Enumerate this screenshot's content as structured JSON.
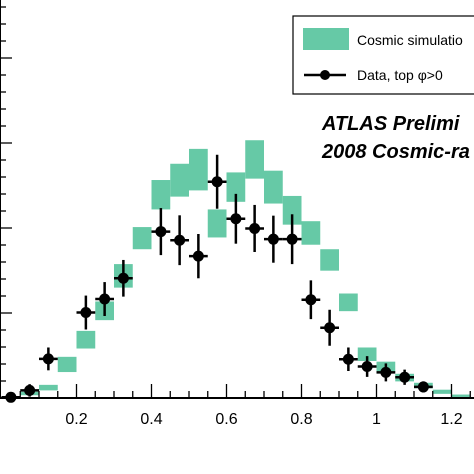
{
  "chart_data": {
    "type": "scatter",
    "title": "",
    "xlabel": "",
    "ylabel": "",
    "xlim": [
      0.0,
      1.25
    ],
    "ylim": [
      0,
      1
    ],
    "x_ticks": [
      "0.2",
      "0.4",
      "0.6",
      "0.8",
      "1",
      "1.2"
    ],
    "legend": {
      "placement": "top-right"
    },
    "annotations": [
      "ATLAS Prelimi",
      "2008 Cosmic-ra"
    ],
    "series": [
      {
        "name": "Cosmic simulatio",
        "kind": "band",
        "color": "#66c9a6",
        "values": [
          {
            "x": 0.025,
            "ylo": 0.0,
            "yhi": 0.004
          },
          {
            "x": 0.075,
            "ylo": 0.008,
            "yhi": 0.018
          },
          {
            "x": 0.125,
            "ylo": 0.022,
            "yhi": 0.038
          },
          {
            "x": 0.175,
            "ylo": 0.075,
            "yhi": 0.119
          },
          {
            "x": 0.225,
            "ylo": 0.143,
            "yhi": 0.194
          },
          {
            "x": 0.275,
            "ylo": 0.225,
            "yhi": 0.279
          },
          {
            "x": 0.325,
            "ylo": 0.319,
            "yhi": 0.387
          },
          {
            "x": 0.375,
            "ylo": 0.43,
            "yhi": 0.494
          },
          {
            "x": 0.425,
            "ylo": 0.545,
            "yhi": 0.63
          },
          {
            "x": 0.475,
            "ylo": 0.582,
            "yhi": 0.677
          },
          {
            "x": 0.525,
            "ylo": 0.6,
            "yhi": 0.72
          },
          {
            "x": 0.575,
            "ylo": 0.464,
            "yhi": 0.545
          },
          {
            "x": 0.625,
            "ylo": 0.567,
            "yhi": 0.652
          },
          {
            "x": 0.675,
            "ylo": 0.634,
            "yhi": 0.745
          },
          {
            "x": 0.725,
            "ylo": 0.562,
            "yhi": 0.657
          },
          {
            "x": 0.775,
            "ylo": 0.501,
            "yhi": 0.584
          },
          {
            "x": 0.825,
            "ylo": 0.443,
            "yhi": 0.511
          },
          {
            "x": 0.875,
            "ylo": 0.368,
            "yhi": 0.43
          },
          {
            "x": 0.925,
            "ylo": 0.251,
            "yhi": 0.302
          },
          {
            "x": 0.975,
            "ylo": 0.107,
            "yhi": 0.146
          },
          {
            "x": 1.025,
            "ylo": 0.074,
            "yhi": 0.105
          },
          {
            "x": 1.075,
            "ylo": 0.048,
            "yhi": 0.07
          },
          {
            "x": 1.125,
            "ylo": 0.028,
            "yhi": 0.044
          },
          {
            "x": 1.175,
            "ylo": 0.012,
            "yhi": 0.024
          },
          {
            "x": 1.225,
            "ylo": 0.003,
            "yhi": 0.01
          }
        ]
      },
      {
        "name": "Data, top φ>0",
        "kind": "points",
        "color": "#000000",
        "values": [
          {
            "x": 0.025,
            "y": 0.002,
            "err": 0.012
          },
          {
            "x": 0.075,
            "y": 0.022,
            "err": 0.018
          },
          {
            "x": 0.125,
            "y": 0.113,
            "err": 0.033
          },
          {
            "x": 0.225,
            "y": 0.247,
            "err": 0.049
          },
          {
            "x": 0.275,
            "y": 0.286,
            "err": 0.049
          },
          {
            "x": 0.325,
            "y": 0.346,
            "err": 0.053
          },
          {
            "x": 0.425,
            "y": 0.481,
            "err": 0.068
          },
          {
            "x": 0.475,
            "y": 0.456,
            "err": 0.072
          },
          {
            "x": 0.525,
            "y": 0.41,
            "err": 0.064
          },
          {
            "x": 0.575,
            "y": 0.625,
            "err": 0.078
          },
          {
            "x": 0.625,
            "y": 0.518,
            "err": 0.072
          },
          {
            "x": 0.675,
            "y": 0.49,
            "err": 0.068
          },
          {
            "x": 0.725,
            "y": 0.459,
            "err": 0.068
          },
          {
            "x": 0.775,
            "y": 0.459,
            "err": 0.072
          },
          {
            "x": 0.825,
            "y": 0.284,
            "err": 0.056
          },
          {
            "x": 0.875,
            "y": 0.203,
            "err": 0.052
          },
          {
            "x": 0.925,
            "y": 0.112,
            "err": 0.034
          },
          {
            "x": 0.975,
            "y": 0.091,
            "err": 0.03
          },
          {
            "x": 1.025,
            "y": 0.074,
            "err": 0.026
          },
          {
            "x": 1.075,
            "y": 0.06,
            "err": 0.022
          },
          {
            "x": 1.125,
            "y": 0.032,
            "err": 0.016
          }
        ]
      }
    ]
  }
}
